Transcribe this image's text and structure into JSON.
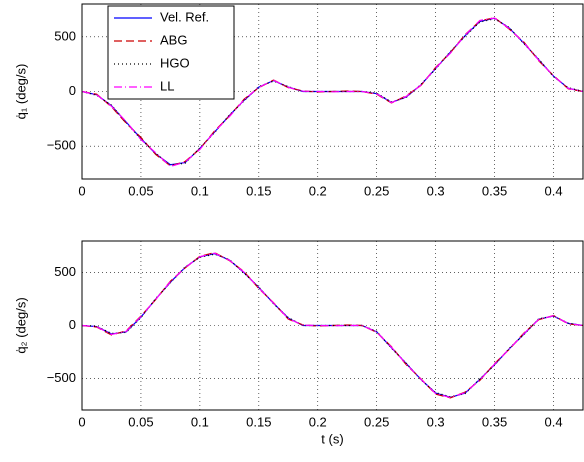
{
  "chart_data": [
    {
      "type": "line",
      "ylabel": "q̇₁ (deg/s)",
      "grid": true,
      "legend": "upper left",
      "xlim": [
        0,
        0.425
      ],
      "ylim": [
        -800,
        800
      ],
      "xticks": [
        0,
        0.05,
        0.1,
        0.15,
        0.2,
        0.25,
        0.3,
        0.35,
        0.4
      ],
      "yticks": [
        {
          "value": -500,
          "label": "−500"
        },
        0,
        500
      ],
      "x": [
        0,
        0.0125,
        0.025,
        0.0375,
        0.05,
        0.0625,
        0.075,
        0.0875,
        0.1,
        0.1125,
        0.125,
        0.1375,
        0.15,
        0.1625,
        0.175,
        0.1875,
        0.2,
        0.2125,
        0.225,
        0.2375,
        0.25,
        0.2625,
        0.275,
        0.2875,
        0.3,
        0.3125,
        0.325,
        0.3375,
        0.35,
        0.3625,
        0.375,
        0.3875,
        0.4,
        0.4125,
        0.425
      ],
      "series": [
        {
          "name": "Vel. Ref.",
          "color": "#0000ff",
          "dash": "solid",
          "values": [
            0,
            -30,
            -130,
            -280,
            -430,
            -570,
            -670,
            -650,
            -520,
            -370,
            -220,
            -80,
            40,
            100,
            40,
            0,
            0,
            0,
            0,
            0,
            -20,
            -100,
            -50,
            60,
            210,
            360,
            510,
            640,
            670,
            580,
            440,
            290,
            140,
            30,
            0
          ]
        },
        {
          "name": "ABG",
          "color": "#cc0000",
          "dash": "dashed",
          "values": [
            0,
            -25,
            -140,
            -290,
            -420,
            -575,
            -680,
            -640,
            -525,
            -360,
            -225,
            -70,
            35,
            105,
            35,
            5,
            -5,
            0,
            5,
            0,
            -25,
            -105,
            -40,
            55,
            220,
            355,
            520,
            645,
            675,
            570,
            450,
            280,
            145,
            25,
            0
          ]
        },
        {
          "name": "HGO",
          "color": "#000000",
          "dash": "dotted",
          "values": [
            0,
            -35,
            -125,
            -285,
            -435,
            -565,
            -675,
            -655,
            -515,
            -375,
            -215,
            -85,
            45,
            95,
            45,
            0,
            0,
            0,
            0,
            0,
            -15,
            -95,
            -55,
            65,
            205,
            365,
            505,
            635,
            665,
            585,
            435,
            295,
            135,
            35,
            0
          ]
        },
        {
          "name": "LL",
          "color": "#ff00ff",
          "dash": "dashdot",
          "values": [
            0,
            -30,
            -135,
            -275,
            -440,
            -560,
            -685,
            -645,
            -530,
            -365,
            -230,
            -75,
            38,
            102,
            38,
            3,
            0,
            -3,
            0,
            0,
            -22,
            -102,
            -45,
            58,
            215,
            350,
            515,
            650,
            672,
            575,
            445,
            285,
            142,
            28,
            0
          ]
        }
      ]
    },
    {
      "type": "line",
      "ylabel": "q̇₂ (deg/s)",
      "xlabel": "t (s)",
      "grid": true,
      "xlim": [
        0,
        0.425
      ],
      "ylim": [
        -800,
        800
      ],
      "xticks": [
        0,
        0.05,
        0.1,
        0.15,
        0.2,
        0.25,
        0.3,
        0.35,
        0.4
      ],
      "yticks": [
        {
          "value": -500,
          "label": "−500"
        },
        0,
        500
      ],
      "x": [
        0,
        0.0125,
        0.025,
        0.0375,
        0.05,
        0.0625,
        0.075,
        0.0875,
        0.1,
        0.1125,
        0.125,
        0.1375,
        0.15,
        0.1625,
        0.175,
        0.1875,
        0.2,
        0.2125,
        0.225,
        0.2375,
        0.25,
        0.2625,
        0.275,
        0.2875,
        0.3,
        0.3125,
        0.325,
        0.3375,
        0.35,
        0.3625,
        0.375,
        0.3875,
        0.4,
        0.4125,
        0.425
      ],
      "series": [
        {
          "name": "Vel. Ref.",
          "color": "#0000ff",
          "dash": "solid",
          "values": [
            0,
            -10,
            -80,
            -60,
            80,
            250,
            410,
            550,
            650,
            680,
            620,
            500,
            360,
            210,
            70,
            0,
            0,
            0,
            0,
            0,
            -60,
            -210,
            -360,
            -510,
            -640,
            -680,
            -640,
            -510,
            -370,
            -220,
            -80,
            60,
            90,
            20,
            0
          ]
        },
        {
          "name": "ABG",
          "color": "#cc0000",
          "dash": "dashed",
          "values": [
            0,
            -15,
            -90,
            -50,
            90,
            245,
            420,
            545,
            655,
            690,
            615,
            510,
            350,
            215,
            60,
            5,
            -5,
            0,
            5,
            0,
            -65,
            -200,
            -370,
            -505,
            -650,
            -685,
            -630,
            -520,
            -360,
            -225,
            -70,
            55,
            95,
            15,
            0
          ]
        },
        {
          "name": "HGO",
          "color": "#000000",
          "dash": "dotted",
          "values": [
            0,
            -8,
            -75,
            -65,
            75,
            255,
            405,
            555,
            645,
            675,
            625,
            495,
            365,
            205,
            75,
            0,
            0,
            0,
            0,
            0,
            -55,
            -215,
            -355,
            -515,
            -635,
            -675,
            -645,
            -505,
            -375,
            -215,
            -85,
            65,
            88,
            22,
            0
          ]
        },
        {
          "name": "LL",
          "color": "#ff00ff",
          "dash": "dashdot",
          "values": [
            0,
            -12,
            -85,
            -55,
            85,
            248,
            415,
            548,
            652,
            685,
            618,
            505,
            355,
            212,
            65,
            3,
            0,
            -3,
            0,
            0,
            -62,
            -205,
            -365,
            -508,
            -645,
            -682,
            -635,
            -515,
            -365,
            -222,
            -75,
            58,
            92,
            18,
            0
          ]
        }
      ]
    }
  ]
}
